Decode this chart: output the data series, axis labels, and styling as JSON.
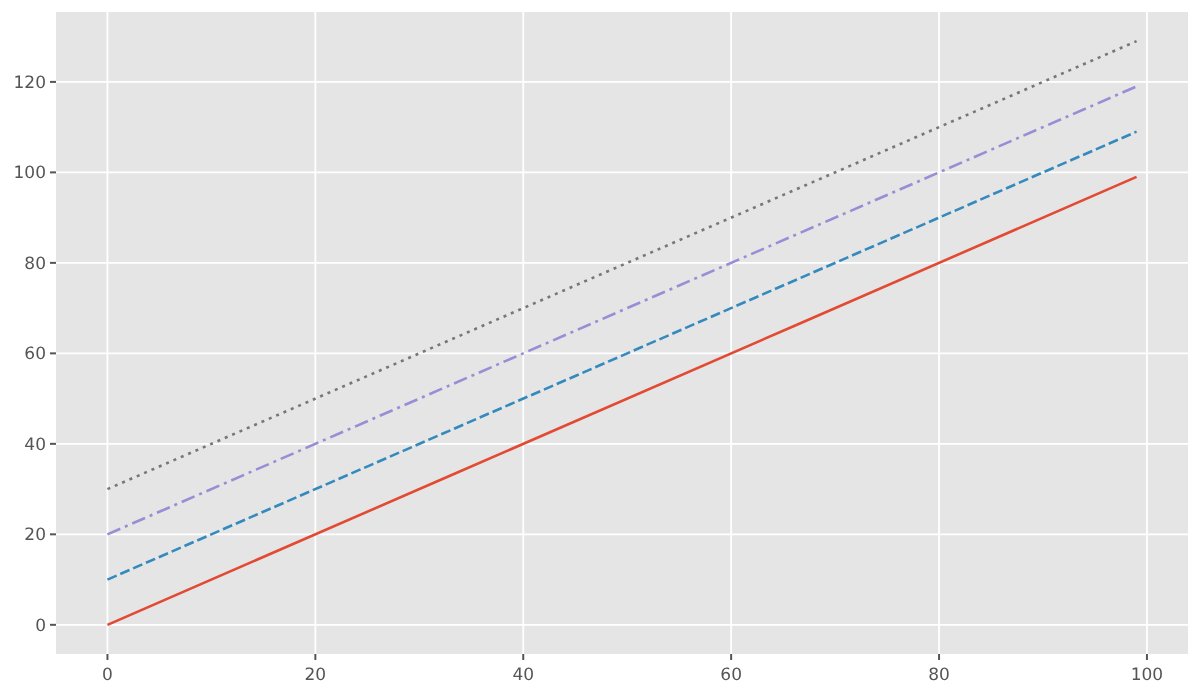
{
  "chart_data": {
    "type": "line",
    "x": [
      0,
      33,
      66,
      99
    ],
    "xlim": [
      -4.95,
      103.95
    ],
    "ylim": [
      -6.45,
      135.45
    ],
    "xticks": [
      0,
      20,
      40,
      60,
      80,
      100
    ],
    "yticks": [
      0,
      20,
      40,
      60,
      80,
      100,
      120
    ],
    "grid": true,
    "marker": "none",
    "series": [
      {
        "color": "#e24a33",
        "values": [
          0,
          33,
          66,
          99
        ],
        "line_style": "solid"
      },
      {
        "color": "#348abd",
        "values": [
          10,
          43,
          76,
          109
        ],
        "line_style": "dashed"
      },
      {
        "color": "#988ed5",
        "values": [
          20,
          53,
          86,
          119
        ],
        "line_style": "dashdot"
      },
      {
        "color": "#777777",
        "values": [
          30,
          63,
          96,
          129
        ],
        "line_style": "dotted"
      }
    ]
  }
}
